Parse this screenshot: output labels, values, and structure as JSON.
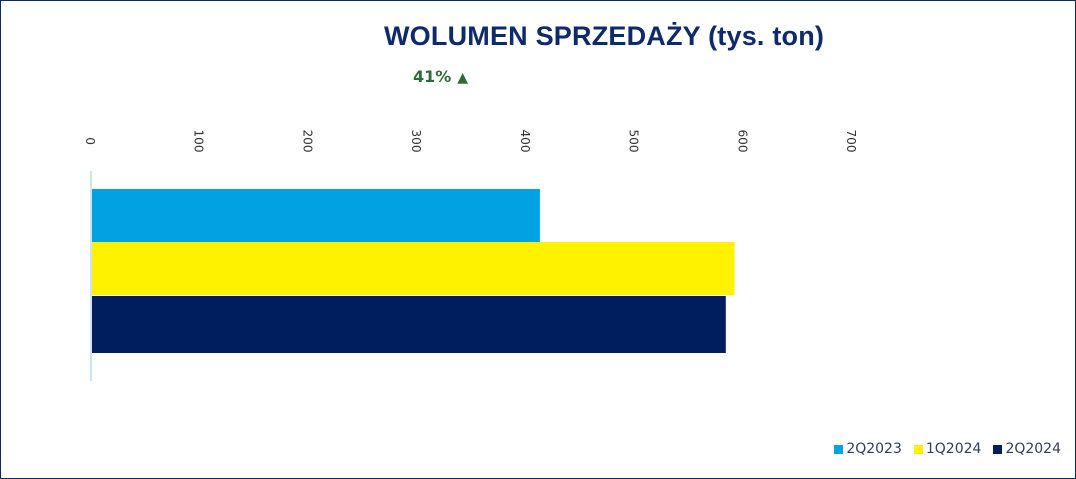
{
  "chart_data": {
    "type": "bar",
    "orientation": "horizontal",
    "title": "WOLUMEN SPRZEDAŻY (tys. ton)",
    "annotation": {
      "text": "41%",
      "direction": "up",
      "color": "#2f6b3a"
    },
    "categories": [
      ""
    ],
    "series": [
      {
        "name": "2Q2023",
        "values": [
          412
        ],
        "color": "#00a3e0"
      },
      {
        "name": "1Q2024",
        "values": [
          591
        ],
        "color": "#fff200"
      },
      {
        "name": "2Q2024",
        "values": [
          583
        ],
        "color": "#001e5e"
      }
    ],
    "xlim": [
      0,
      700
    ],
    "xticks": [
      0,
      100,
      200,
      300,
      400,
      500,
      600,
      700
    ],
    "xaxis_position": "top",
    "tick_label_rotation": "vertical",
    "grid": false,
    "legend_position": "bottom-right"
  }
}
